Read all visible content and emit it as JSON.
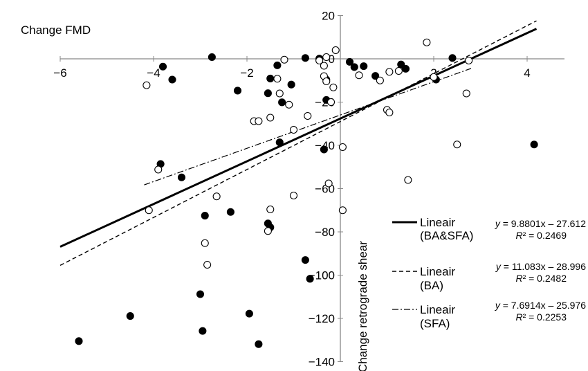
{
  "chart_data": {
    "type": "scatter",
    "title": "",
    "ylabel": "Change FMD",
    "xlabel": "Change retrograde shear",
    "xlim": [
      -6,
      4.8
    ],
    "ylim": [
      -140,
      20
    ],
    "x_ticks": [
      -6,
      -4,
      -2,
      2,
      4
    ],
    "x_tick_labels": [
      "−6",
      "−4",
      "−2",
      "2",
      "4"
    ],
    "y_ticks": [
      20,
      0,
      -20,
      -40,
      -60,
      -80,
      -100,
      -120,
      -140
    ],
    "y_tick_labels": [
      "20",
      "0",
      "−20",
      "−40",
      "−60",
      "−80",
      "−100",
      "−120",
      "−140"
    ],
    "grid": false,
    "legend_position": "right",
    "series": [
      {
        "name": "BA",
        "marker": "filled-circle",
        "color": "#000000",
        "points": [
          [
            -5.6,
            -130.5
          ],
          [
            -4.5,
            -118.9
          ],
          [
            -3.85,
            -48.6
          ],
          [
            -3.8,
            -3.6
          ],
          [
            -3.6,
            -9.6
          ],
          [
            -3.4,
            -54.8
          ],
          [
            -3.0,
            -108.8
          ],
          [
            -2.95,
            -125.8
          ],
          [
            -2.9,
            -72.5
          ],
          [
            -2.75,
            0.8
          ],
          [
            -2.35,
            -70.8
          ],
          [
            -2.2,
            -14.7
          ],
          [
            -1.95,
            -117.8
          ],
          [
            -1.75,
            -131.9
          ],
          [
            -1.55,
            -76.1
          ],
          [
            -1.55,
            -15.9
          ],
          [
            -1.5,
            -9.1
          ],
          [
            -1.5,
            -77.9
          ],
          [
            -1.35,
            -3.0
          ],
          [
            -1.3,
            -38.6
          ],
          [
            -1.25,
            -20.1
          ],
          [
            -1.05,
            -11.9
          ],
          [
            -0.75,
            -93.0
          ],
          [
            -0.65,
            -101.7
          ],
          [
            -0.75,
            0.4
          ],
          [
            -0.45,
            0.1
          ],
          [
            -0.35,
            -41.9
          ],
          [
            -0.3,
            -19.0
          ],
          [
            -0.3,
            -9.6
          ],
          [
            0.2,
            -1.4
          ],
          [
            0.3,
            -3.8
          ],
          [
            0.5,
            -3.4
          ],
          [
            0.75,
            -7.9
          ],
          [
            1.3,
            -2.6
          ],
          [
            1.4,
            -4.6
          ],
          [
            2.05,
            -9.6
          ],
          [
            2.4,
            0.4
          ],
          [
            4.15,
            -39.6
          ]
        ]
      },
      {
        "name": "SFA",
        "marker": "open-circle",
        "color": "#000000",
        "points": [
          [
            -4.15,
            -12.2
          ],
          [
            -3.9,
            -51.2
          ],
          [
            -4.1,
            -70.0
          ],
          [
            -2.9,
            -85.2
          ],
          [
            -2.85,
            -95.2
          ],
          [
            -2.65,
            -63.6
          ],
          [
            -1.85,
            -28.8
          ],
          [
            -1.75,
            -28.8
          ],
          [
            -1.55,
            -79.6
          ],
          [
            -1.5,
            -69.6
          ],
          [
            -1.5,
            -27.2
          ],
          [
            -1.35,
            -9.2
          ],
          [
            -1.3,
            -16.0
          ],
          [
            -1.2,
            -0.4
          ],
          [
            -1.1,
            -21.2
          ],
          [
            -1.0,
            -63.2
          ],
          [
            -1.0,
            -32.8
          ],
          [
            -0.7,
            -26.4
          ],
          [
            -0.45,
            -0.8
          ],
          [
            -0.35,
            -3.2
          ],
          [
            -0.35,
            -8.0
          ],
          [
            -0.3,
            -10.4
          ],
          [
            -0.3,
            0.8
          ],
          [
            -0.25,
            -57.6
          ],
          [
            -0.2,
            -20.0
          ],
          [
            -0.15,
            -13.2
          ],
          [
            -0.1,
            4.0
          ],
          [
            0.05,
            -70.0
          ],
          [
            0.05,
            -40.8
          ],
          [
            0.4,
            -7.6
          ],
          [
            0.85,
            -10.0
          ],
          [
            1.0,
            -23.6
          ],
          [
            1.05,
            -24.8
          ],
          [
            1.05,
            -6.0
          ],
          [
            1.25,
            -5.6
          ],
          [
            1.45,
            -56.0
          ],
          [
            1.85,
            7.6
          ],
          [
            2.0,
            -8.4
          ],
          [
            2.5,
            -39.6
          ],
          [
            2.7,
            -16.0
          ],
          [
            2.75,
            -0.8
          ]
        ]
      }
    ],
    "trendlines": [
      {
        "legend_label_line1": "Lineair",
        "legend_label_line2": "(BA&SFA)",
        "style": "solid",
        "slope": 9.8801,
        "intercept": -27.612,
        "x_range": [
          -6.0,
          4.2
        ],
        "equation_y": "y",
        "equation_rest": " = 9.8801x – 27.612",
        "r2_label": "R",
        "r2_rest": "² = 0.2469"
      },
      {
        "legend_label_line1": "Lineair",
        "legend_label_line2": "(BA)",
        "style": "dashed",
        "slope": 11.083,
        "intercept": -28.996,
        "x_range": [
          -6.0,
          4.2
        ],
        "equation_y": "y",
        "equation_rest": " = 11.083x – 28.996",
        "r2_label": "R",
        "r2_rest": "² = 0.2482"
      },
      {
        "legend_label_line1": "Lineair",
        "legend_label_line2": "(SFA)",
        "style": "dashdot",
        "slope": 7.6914,
        "intercept": -25.976,
        "x_range": [
          -4.2,
          2.8
        ],
        "equation_y": "y",
        "equation_rest": " = 7.6914x – 25.976",
        "r2_label": "R",
        "r2_rest": "² = 0.2253"
      }
    ]
  }
}
